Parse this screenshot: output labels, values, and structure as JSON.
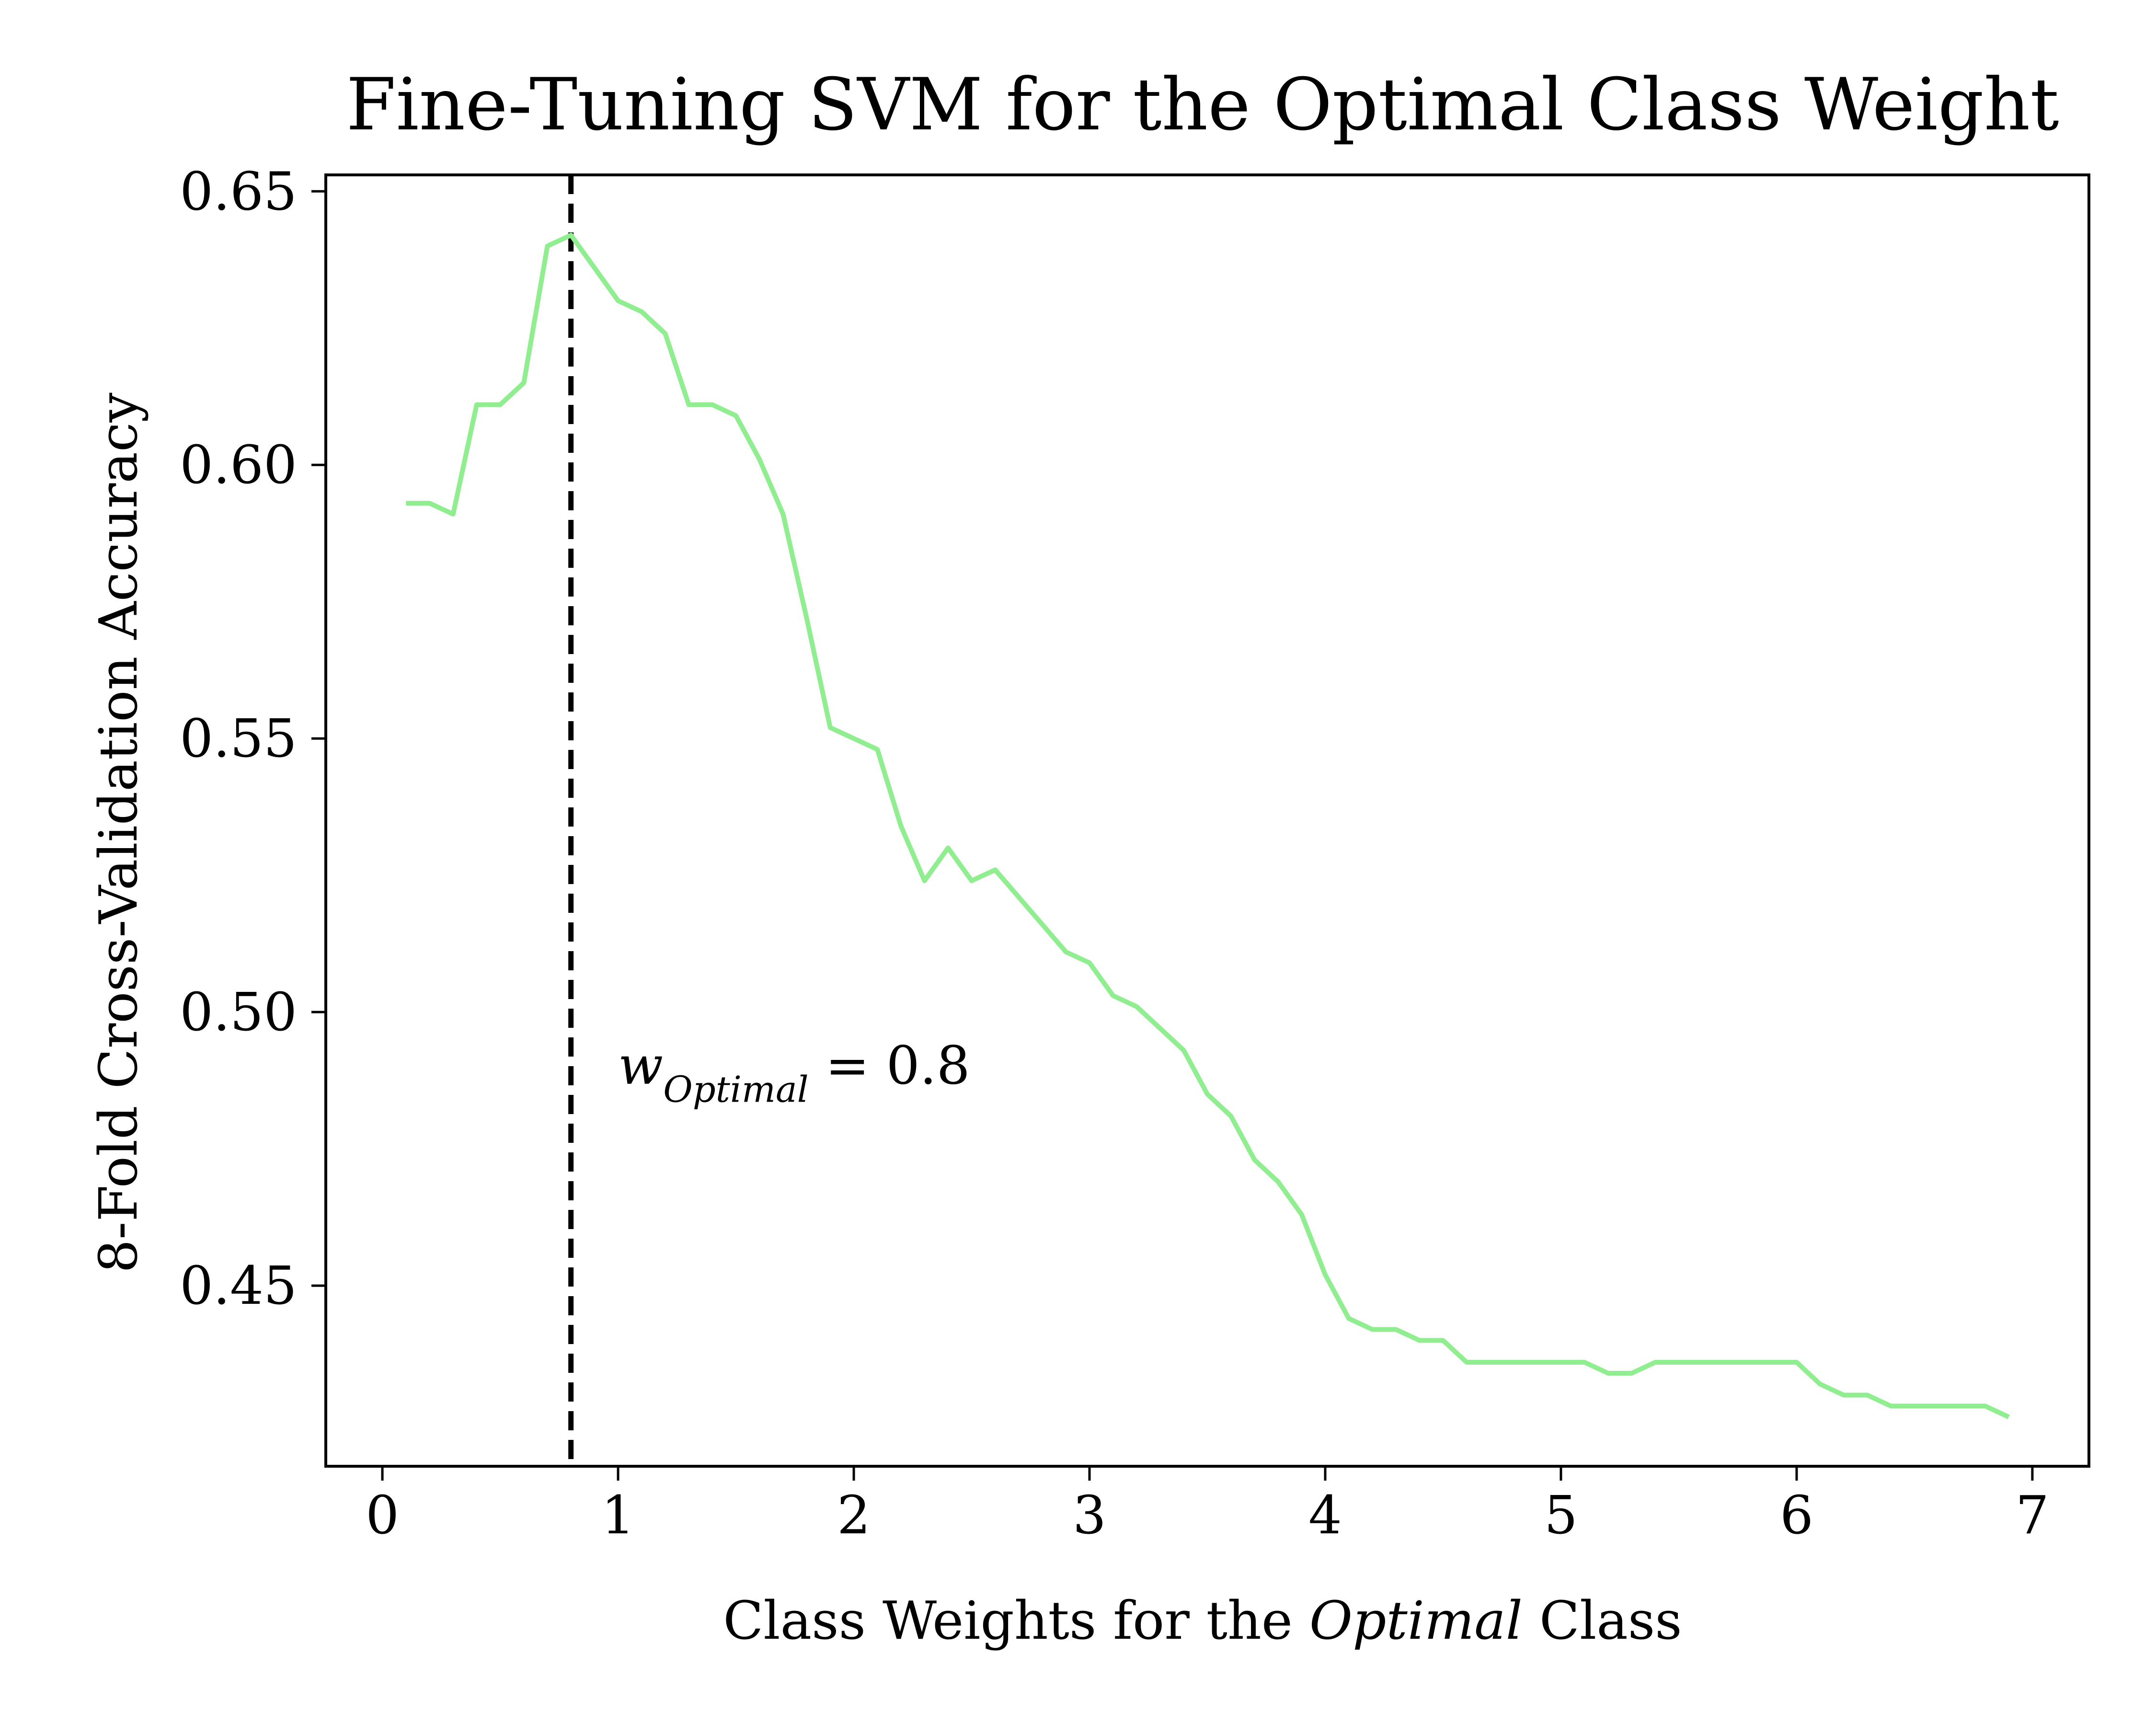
{
  "chart_data": {
    "type": "line",
    "title": "Fine-Tuning SVM for the Optimal Class Weight",
    "xlabel": {
      "prefix": "Class Weights for the ",
      "emph": "Optimal",
      "suffix": " Class"
    },
    "ylabel": "8-Fold Cross-Validation Accuracy",
    "xlim": [
      -0.24,
      7.24
    ],
    "ylim": [
      0.417,
      0.653
    ],
    "xticks": [
      0,
      1,
      2,
      3,
      4,
      5,
      6,
      7
    ],
    "yticks": [
      0.45,
      0.5,
      0.55,
      0.6,
      0.65
    ],
    "ytick_labels": [
      "0.45",
      "0.50",
      "0.55",
      "0.60",
      "0.65"
    ],
    "grid": false,
    "series": [
      {
        "color": "#90ee90",
        "x": [
          0.1,
          0.2,
          0.3,
          0.4,
          0.5,
          0.6,
          0.7,
          0.8,
          0.9,
          1.0,
          1.1,
          1.2,
          1.3,
          1.4,
          1.5,
          1.6,
          1.7,
          1.8,
          1.9,
          2.0,
          2.1,
          2.2,
          2.3,
          2.4,
          2.5,
          2.6,
          2.7,
          2.8,
          2.9,
          3.0,
          3.1,
          3.2,
          3.3,
          3.4,
          3.5,
          3.6,
          3.7,
          3.8,
          3.9,
          4.0,
          4.1,
          4.2,
          4.3,
          4.4,
          4.5,
          4.6,
          4.7,
          4.8,
          4.9,
          5.0,
          5.1,
          5.2,
          5.3,
          5.4,
          5.5,
          5.6,
          5.7,
          5.8,
          5.9,
          6.0,
          6.1,
          6.2,
          6.3,
          6.4,
          6.5,
          6.6,
          6.7,
          6.8,
          6.9
        ],
        "y": [
          0.593,
          0.593,
          0.591,
          0.611,
          0.611,
          0.615,
          0.64,
          0.642,
          0.636,
          0.63,
          0.628,
          0.624,
          0.611,
          0.611,
          0.609,
          0.601,
          0.591,
          0.572,
          0.552,
          0.55,
          0.548,
          0.534,
          0.524,
          0.53,
          0.524,
          0.526,
          0.521,
          0.516,
          0.511,
          0.509,
          0.503,
          0.501,
          0.497,
          0.493,
          0.485,
          0.481,
          0.473,
          0.469,
          0.463,
          0.452,
          0.444,
          0.442,
          0.442,
          0.44,
          0.44,
          0.436,
          0.436,
          0.436,
          0.436,
          0.436,
          0.436,
          0.434,
          0.434,
          0.436,
          0.436,
          0.436,
          0.436,
          0.436,
          0.436,
          0.436,
          0.432,
          0.43,
          0.43,
          0.428,
          0.428,
          0.428,
          0.428,
          0.428,
          0.426
        ]
      }
    ],
    "vline": {
      "x": 0.8,
      "color": "#000000",
      "style": "dashed"
    },
    "annotation": {
      "x": 1.0,
      "y": 0.49,
      "var": "w",
      "sub": "Optimal",
      "rest": " = 0.8"
    }
  }
}
